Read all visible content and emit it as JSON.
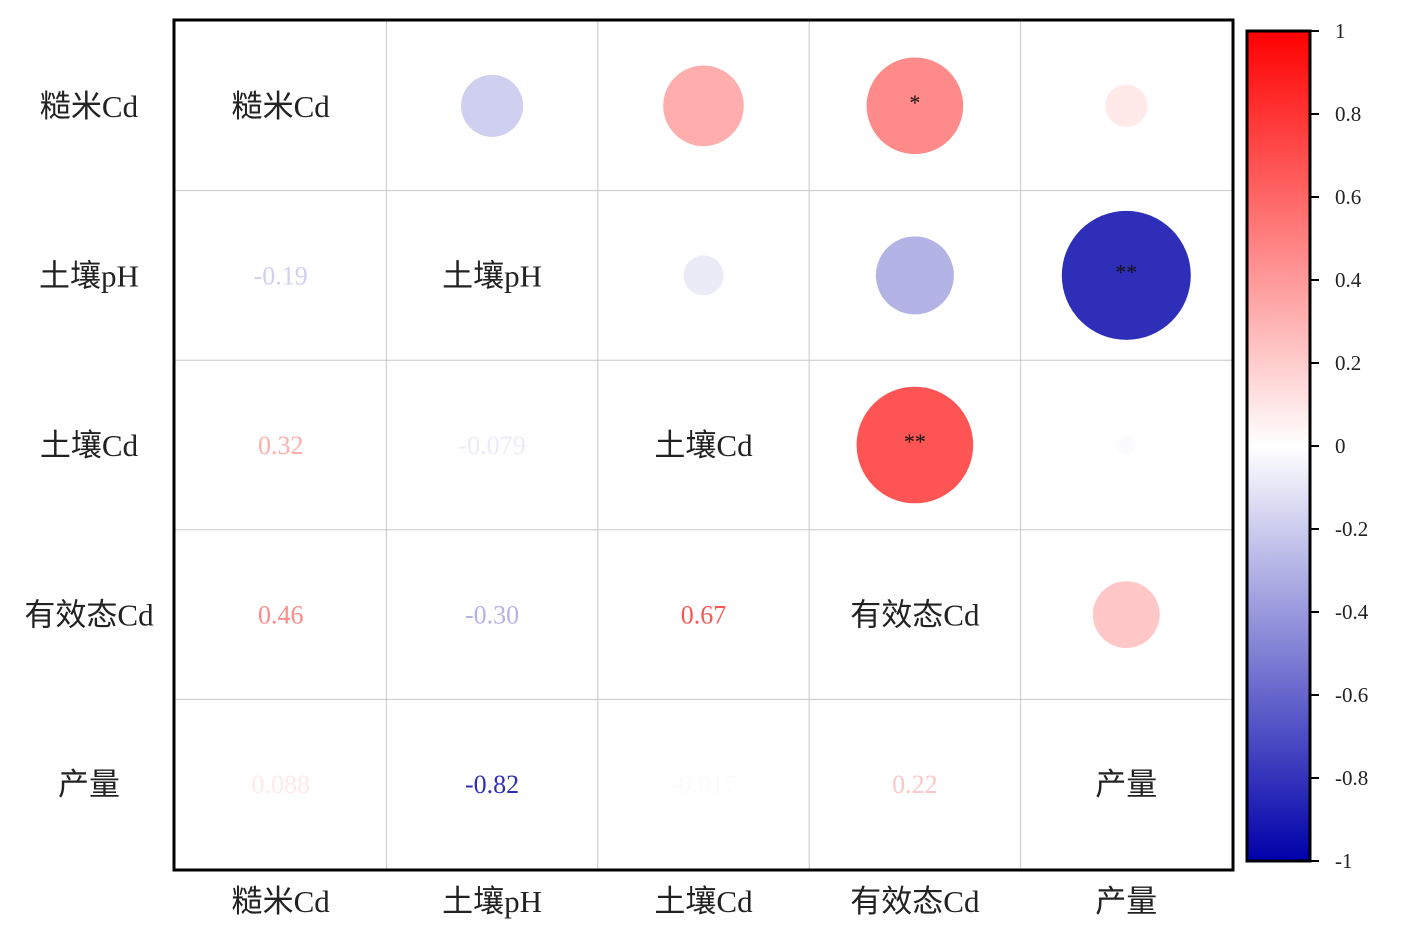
{
  "chart_data": {
    "type": "heatmap",
    "subtype": "correlation-matrix",
    "variables": [
      "糙米Cd",
      "土壤pH",
      "土壤Cd",
      "有效态Cd",
      "产量"
    ],
    "matrix": [
      [
        1,
        -0.19,
        0.32,
        0.46,
        0.088
      ],
      [
        -0.19,
        1,
        -0.079,
        -0.3,
        -0.82
      ],
      [
        0.32,
        -0.079,
        1,
        0.67,
        -0.017
      ],
      [
        0.46,
        -0.3,
        0.67,
        1,
        0.22
      ],
      [
        0.088,
        -0.82,
        -0.017,
        0.22,
        1
      ]
    ],
    "value_labels": [
      [
        "",
        "",
        "",
        "",
        ""
      ],
      [
        "-0.19",
        "",
        "",
        "",
        ""
      ],
      [
        "0.32",
        "-0.079",
        "",
        "",
        ""
      ],
      [
        "0.46",
        "-0.30",
        "0.67",
        "",
        ""
      ],
      [
        "0.088",
        "-0.82",
        "-0.017",
        "0.22",
        ""
      ]
    ],
    "significance": [
      [
        "",
        "",
        "",
        "*",
        ""
      ],
      [
        "",
        "",
        "",
        "",
        "**"
      ],
      [
        "",
        "",
        "",
        "**",
        ""
      ],
      [
        "",
        "",
        "",
        "",
        ""
      ],
      [
        "",
        "",
        "",
        "",
        ""
      ]
    ],
    "upper_triangle": "circles",
    "lower_triangle": "numbers",
    "diagonal": "variable names",
    "colorbar": {
      "range": [
        -1,
        1
      ],
      "ticks": [
        1,
        0.8,
        0.6,
        0.4,
        0.2,
        0,
        -0.2,
        -0.4,
        -0.6,
        -0.8,
        -1
      ],
      "tick_labels": [
        "1",
        "0.8",
        "0.6",
        "0.4",
        "0.2",
        "0",
        "-0.2",
        "-0.4",
        "-0.6",
        "-0.8",
        "-1"
      ],
      "colors": {
        "negative": "#0000aa",
        "zero": "#ffffff",
        "positive": "#ff0000"
      }
    },
    "grid": true,
    "legend_position": "right"
  }
}
